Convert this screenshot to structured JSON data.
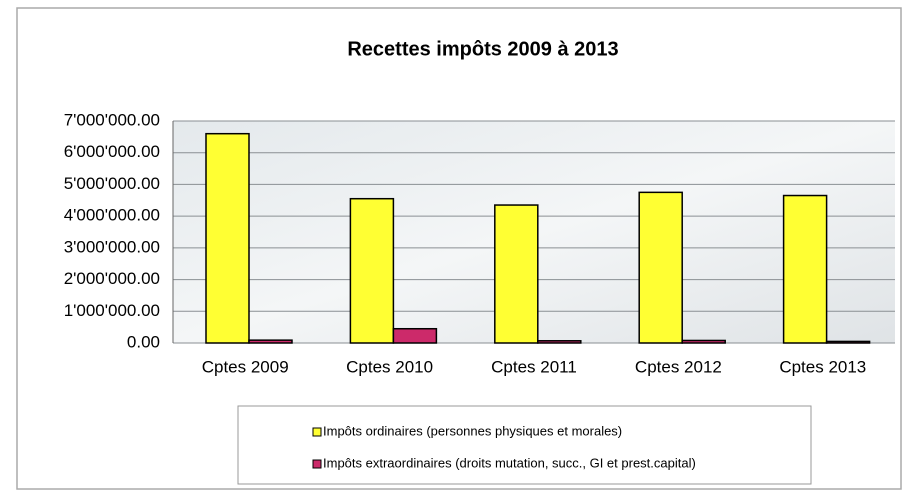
{
  "chart_data": {
    "type": "bar",
    "title": "Recettes impôts 2009 à 2013",
    "categories": [
      "Cptes 2009",
      "Cptes 2010",
      "Cptes 2011",
      "Cptes 2012",
      "Cptes 2013"
    ],
    "series": [
      {
        "name": "Impôts ordinaires (personnes physiques et morales)",
        "color": "#ffff33",
        "values": [
          6600000,
          4550000,
          4350000,
          4750000,
          4650000
        ]
      },
      {
        "name": "Impôts extraordinaires (droits mutation, succ., GI et prest.capital)",
        "color": "#cc2a6a",
        "values": [
          90000,
          450000,
          70000,
          80000,
          50000
        ]
      }
    ],
    "ylim": [
      0,
      7000000
    ],
    "yticks": [
      {
        "value": 0,
        "label": "0.00"
      },
      {
        "value": 1000000,
        "label": "1'000'000.00"
      },
      {
        "value": 2000000,
        "label": "2'000'000.00"
      },
      {
        "value": 3000000,
        "label": "3'000'000.00"
      },
      {
        "value": 4000000,
        "label": "4'000'000.00"
      },
      {
        "value": 5000000,
        "label": "5'000'000.00"
      },
      {
        "value": 6000000,
        "label": "6'000'000.00"
      },
      {
        "value": 7000000,
        "label": "7'000'000.00"
      }
    ],
    "grid": true
  }
}
